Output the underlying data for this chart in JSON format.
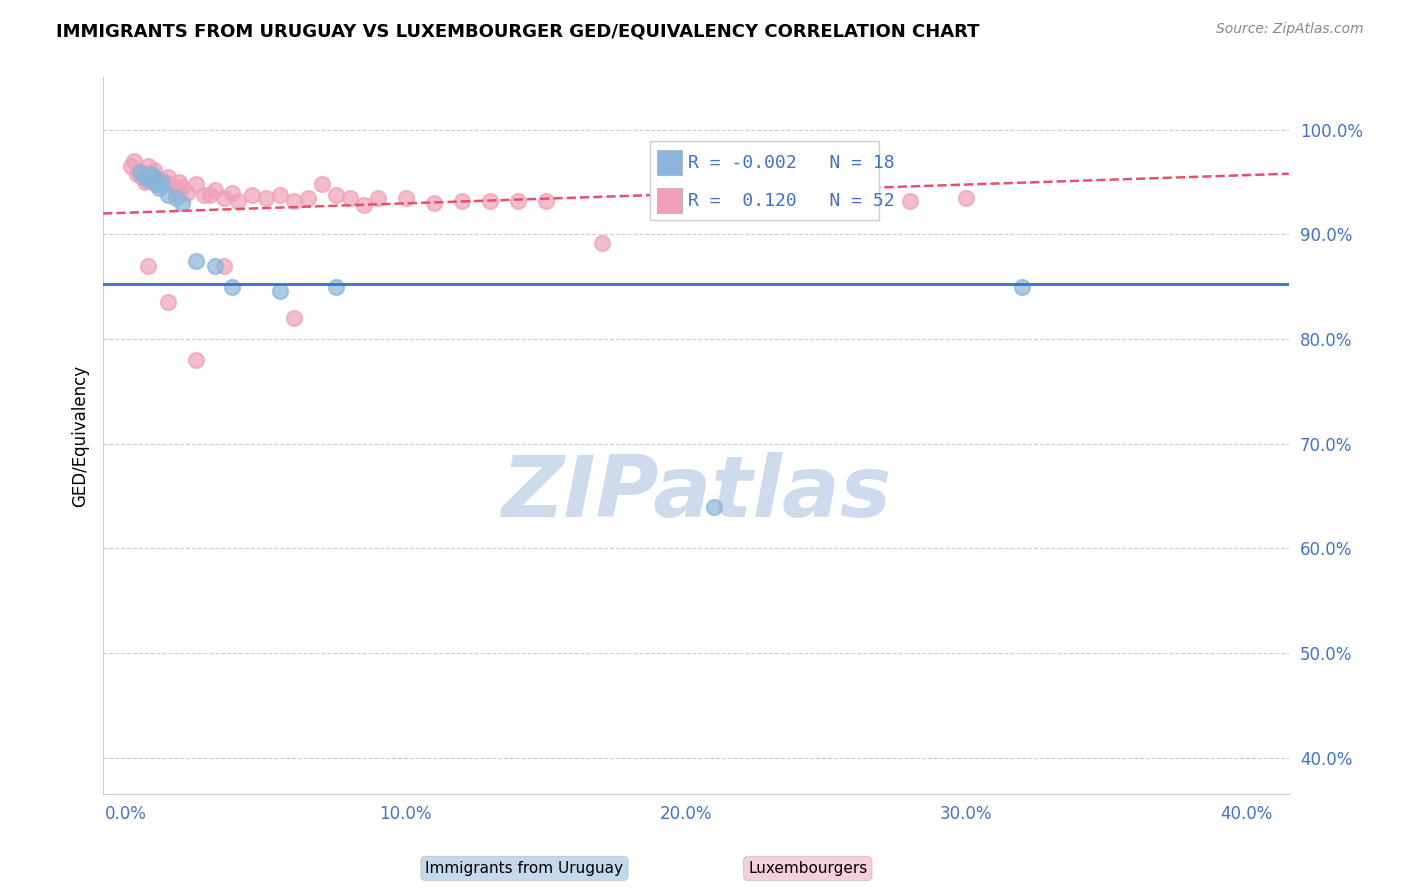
{
  "title": "IMMIGRANTS FROM URUGUAY VS LUXEMBOURGER GED/EQUIVALENCY CORRELATION CHART",
  "source": "Source: ZipAtlas.com",
  "ylabel": "GED/Equivalency",
  "xaxis_label_blue": "Immigrants from Uruguay",
  "xaxis_label_pink": "Luxembourgers",
  "x_tick_vals": [
    0.0,
    0.1,
    0.2,
    0.3,
    0.4
  ],
  "x_tick_labels": [
    "0.0%",
    "10.0%",
    "20.0%",
    "30.0%",
    "40.0%"
  ],
  "y_tick_vals": [
    0.4,
    0.5,
    0.6,
    0.7,
    0.8,
    0.9,
    1.0
  ],
  "y_tick_labels": [
    "40.0%",
    "50.0%",
    "60.0%",
    "70.0%",
    "80.0%",
    "90.0%",
    "100.0%"
  ],
  "xlim": [
    -0.008,
    0.415
  ],
  "ylim": [
    0.365,
    1.05
  ],
  "legend_r_blue": "-0.002",
  "legend_n_blue": "18",
  "legend_r_pink": "0.120",
  "legend_n_pink": "52",
  "blue_scatter_x": [
    0.005,
    0.007,
    0.008,
    0.009,
    0.01,
    0.011,
    0.012,
    0.013,
    0.015,
    0.018,
    0.02,
    0.025,
    0.032,
    0.038,
    0.055,
    0.075,
    0.32,
    0.21
  ],
  "blue_scatter_y": [
    0.96,
    0.955,
    0.952,
    0.958,
    0.955,
    0.948,
    0.944,
    0.95,
    0.938,
    0.935,
    0.93,
    0.875,
    0.87,
    0.85,
    0.846,
    0.85,
    0.85,
    0.64
  ],
  "pink_scatter_x": [
    0.002,
    0.003,
    0.004,
    0.005,
    0.006,
    0.007,
    0.008,
    0.009,
    0.01,
    0.011,
    0.012,
    0.013,
    0.015,
    0.016,
    0.018,
    0.019,
    0.02,
    0.022,
    0.025,
    0.028,
    0.03,
    0.032,
    0.035,
    0.038,
    0.04,
    0.045,
    0.05,
    0.055,
    0.06,
    0.065,
    0.07,
    0.075,
    0.08,
    0.085,
    0.09,
    0.1,
    0.11,
    0.12,
    0.13,
    0.14,
    0.15,
    0.17,
    0.19,
    0.22,
    0.25,
    0.28,
    0.3,
    0.06,
    0.035,
    0.025,
    0.015,
    0.008
  ],
  "pink_scatter_y": [
    0.965,
    0.97,
    0.958,
    0.96,
    0.955,
    0.95,
    0.965,
    0.958,
    0.962,
    0.955,
    0.948,
    0.952,
    0.955,
    0.948,
    0.942,
    0.95,
    0.945,
    0.94,
    0.948,
    0.938,
    0.938,
    0.942,
    0.935,
    0.94,
    0.932,
    0.938,
    0.935,
    0.938,
    0.932,
    0.935,
    0.948,
    0.938,
    0.935,
    0.928,
    0.935,
    0.935,
    0.93,
    0.932,
    0.932,
    0.932,
    0.932,
    0.892,
    0.932,
    0.94,
    0.935,
    0.932,
    0.935,
    0.82,
    0.87,
    0.78,
    0.835,
    0.87
  ],
  "blue_line_x": [
    -0.008,
    0.415
  ],
  "blue_line_y": [
    0.853,
    0.853
  ],
  "pink_line_x": [
    -0.008,
    0.415
  ],
  "pink_line_y": [
    0.92,
    0.958
  ],
  "background_color": "#ffffff",
  "plot_bg_color": "#ffffff",
  "grid_color": "#cccccc",
  "blue_color": "#8ab4d9",
  "pink_color": "#f0a0b8",
  "blue_line_color": "#3a6fcc",
  "pink_line_color": "#e8506a",
  "tick_color": "#4472c4",
  "watermark_text": "ZIPatlas",
  "watermark_color": "#c8d8ea"
}
